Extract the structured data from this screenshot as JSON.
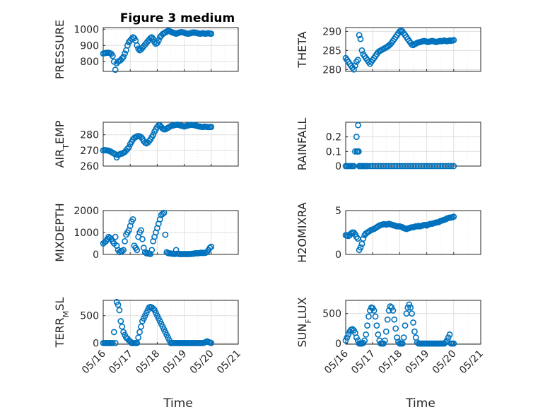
{
  "figure": {
    "title": "Figure 3 medium",
    "xlabel": "Time"
  },
  "colors": {
    "marker": "#0072bd",
    "axes": "#262626",
    "grid": "#dfdfdf"
  },
  "chart_data": [
    {
      "type": "scatter",
      "ylabel": "PRESSURE",
      "ylabel_sub": "",
      "ylabel_tail": "",
      "xlim": [
        "05/16",
        "05/21"
      ],
      "ylim": [
        740,
        1010
      ],
      "yticks": [
        800,
        900,
        1000
      ],
      "x_days": [
        0,
        0.05,
        0.1,
        0.15,
        0.2,
        0.25,
        0.3,
        0.35,
        0.4,
        0.45,
        0.5,
        0.55,
        0.6,
        0.65,
        0.7,
        0.75,
        0.8,
        0.85,
        0.9,
        0.95,
        1.0,
        1.05,
        1.1,
        1.15,
        1.2,
        1.25,
        1.3,
        1.35,
        1.4,
        1.45,
        1.5,
        1.55,
        1.6,
        1.65,
        1.7,
        1.75,
        1.8,
        1.85,
        1.9,
        1.95,
        2.0,
        2.05,
        2.1,
        2.15,
        2.2,
        2.25,
        2.3,
        2.35,
        2.4,
        2.45,
        2.5,
        2.55,
        2.6,
        2.65,
        2.7,
        2.75,
        2.8,
        2.85,
        2.9,
        2.95,
        3.0,
        3.05,
        3.1,
        3.15,
        3.2,
        3.25,
        3.3,
        3.35,
        3.4,
        3.45,
        3.5,
        3.55,
        3.6,
        3.65,
        3.7,
        3.75,
        3.8,
        3.85,
        3.9,
        3.95,
        4.0
      ],
      "y": [
        850,
        852,
        854,
        855,
        855,
        852,
        848,
        835,
        800,
        750,
        790,
        800,
        805,
        810,
        820,
        830,
        850,
        870,
        900,
        920,
        930,
        940,
        950,
        945,
        930,
        900,
        880,
        870,
        875,
        885,
        895,
        905,
        915,
        925,
        935,
        945,
        950,
        940,
        920,
        910,
        915,
        930,
        950,
        960,
        970,
        975,
        980,
        985,
        990,
        988,
        985,
        980,
        978,
        975,
        972,
        975,
        978,
        980,
        982,
        980,
        978,
        975,
        973,
        972,
        974,
        976,
        978,
        980,
        979,
        977,
        975,
        973,
        972,
        974,
        975,
        973,
        972,
        974,
        975,
        973,
        972
      ]
    },
    {
      "type": "scatter",
      "ylabel": "THETA",
      "ylabel_sub": "",
      "ylabel_tail": "",
      "xlim": [
        "05/16",
        "05/21"
      ],
      "ylim": [
        279.5,
        291
      ],
      "yticks": [
        280,
        285,
        290
      ],
      "x_days": [
        0,
        0.05,
        0.1,
        0.15,
        0.2,
        0.25,
        0.3,
        0.35,
        0.4,
        0.45,
        0.5,
        0.55,
        0.6,
        0.65,
        0.7,
        0.75,
        0.8,
        0.85,
        0.9,
        0.95,
        1.0,
        1.05,
        1.1,
        1.15,
        1.2,
        1.25,
        1.3,
        1.35,
        1.4,
        1.45,
        1.5,
        1.55,
        1.6,
        1.65,
        1.7,
        1.75,
        1.8,
        1.85,
        1.9,
        1.95,
        2.0,
        2.05,
        2.1,
        2.15,
        2.2,
        2.25,
        2.3,
        2.35,
        2.4,
        2.45,
        2.5,
        2.55,
        2.6,
        2.65,
        2.7,
        2.75,
        2.8,
        2.85,
        2.9,
        2.95,
        3.0,
        3.05,
        3.1,
        3.15,
        3.2,
        3.25,
        3.3,
        3.35,
        3.4,
        3.45,
        3.5,
        3.55,
        3.6,
        3.65,
        3.7,
        3.75,
        3.8,
        3.85,
        3.9,
        3.95,
        4.0
      ],
      "y": [
        283,
        282.5,
        282,
        281.5,
        281,
        280.5,
        280,
        281,
        282,
        282.5,
        289,
        288,
        285,
        284,
        283.5,
        283,
        282.5,
        282,
        281.5,
        282,
        282.5,
        283,
        283.5,
        284,
        284.5,
        284.8,
        285,
        285.2,
        285.4,
        285.6,
        285.8,
        286,
        286.3,
        286.6,
        287,
        287.5,
        288,
        288.5,
        289,
        289.5,
        290,
        290.2,
        290,
        289.5,
        289,
        288.5,
        288,
        287.5,
        287,
        286.5,
        286.4,
        286.6,
        286.8,
        287,
        287.1,
        287.2,
        287.3,
        287.4,
        287.5,
        287.4,
        287.3,
        287.2,
        287.3,
        287.4,
        287.5,
        287.4,
        287.3,
        287.2,
        287.3,
        287.4,
        287.5,
        287.4,
        287.5,
        287.6,
        287.5,
        287.4,
        287.5,
        287.6,
        287.5,
        287.6,
        287.7
      ]
    },
    {
      "type": "scatter",
      "ylabel": "AIR",
      "ylabel_sub": "T",
      "ylabel_tail": "EMP",
      "xlim": [
        "05/16",
        "05/21"
      ],
      "ylim": [
        260,
        288
      ],
      "yticks": [
        260,
        270,
        280
      ],
      "x_days": [
        0,
        0.05,
        0.1,
        0.15,
        0.2,
        0.25,
        0.3,
        0.35,
        0.4,
        0.45,
        0.5,
        0.55,
        0.6,
        0.65,
        0.7,
        0.75,
        0.8,
        0.85,
        0.9,
        0.95,
        1.0,
        1.05,
        1.1,
        1.15,
        1.2,
        1.25,
        1.3,
        1.35,
        1.4,
        1.45,
        1.5,
        1.55,
        1.6,
        1.65,
        1.7,
        1.75,
        1.8,
        1.85,
        1.9,
        1.95,
        2.0,
        2.05,
        2.1,
        2.15,
        2.2,
        2.25,
        2.3,
        2.35,
        2.4,
        2.45,
        2.5,
        2.55,
        2.6,
        2.65,
        2.7,
        2.75,
        2.8,
        2.85,
        2.9,
        2.95,
        3.0,
        3.05,
        3.1,
        3.15,
        3.2,
        3.25,
        3.3,
        3.35,
        3.4,
        3.45,
        3.5,
        3.55,
        3.6,
        3.65,
        3.7,
        3.75,
        3.8,
        3.85,
        3.9,
        3.95,
        4.0
      ],
      "y": [
        270,
        270.2,
        270.1,
        270,
        269.8,
        269.5,
        269,
        268.5,
        268,
        267.5,
        265.5,
        267,
        267.5,
        267.8,
        268,
        268.5,
        269,
        270,
        271,
        272,
        274,
        275.5,
        277,
        278,
        278.5,
        279,
        279.2,
        279,
        278.5,
        277.5,
        276,
        275,
        274.5,
        275,
        276,
        277,
        278.5,
        280,
        282,
        283.5,
        285,
        286,
        286,
        285,
        284,
        283.5,
        283.5,
        284,
        284.5,
        285,
        285.5,
        285.8,
        286,
        286.2,
        286.4,
        286.5,
        286.3,
        286,
        285.8,
        285.5,
        285.3,
        285.5,
        285.8,
        286,
        286.2,
        286.4,
        286.3,
        286.2,
        286,
        285.8,
        285.5,
        285.3,
        285.2,
        285,
        285,
        285.2,
        285.1,
        285,
        284.9,
        285,
        285
      ]
    },
    {
      "type": "scatter",
      "ylabel": "RAINFALL",
      "ylabel_sub": "",
      "ylabel_tail": "",
      "xlim": [
        "05/16",
        "05/21"
      ],
      "ylim": [
        0,
        0.3
      ],
      "yticks": [
        0,
        0.1,
        0.2
      ],
      "ytick_labels": [
        "0",
        "0.1",
        "0.2"
      ],
      "x_days": [
        0,
        0.05,
        0.1,
        0.15,
        0.2,
        0.25,
        0.3,
        0.35,
        0.4,
        0.42,
        0.44,
        0.46,
        0.48,
        0.5,
        0.52,
        0.55,
        0.6,
        0.65,
        0.7,
        0.75,
        0.8,
        0.9,
        1.0,
        1.1,
        1.2,
        1.3,
        1.4,
        1.5,
        1.6,
        1.7,
        1.8,
        1.9,
        2.0,
        2.1,
        2.2,
        2.3,
        2.4,
        2.5,
        2.6,
        2.7,
        2.8,
        2.9,
        3.0,
        3.1,
        3.2,
        3.3,
        3.4,
        3.5,
        3.6,
        3.7,
        3.8,
        3.9,
        4.0
      ],
      "y": [
        0,
        0,
        0,
        0,
        0,
        0,
        0,
        0.1,
        0.2,
        0.1,
        0.1,
        0.28,
        0.1,
        0,
        0,
        0,
        0,
        0,
        0,
        0,
        0,
        0,
        0,
        0,
        0,
        0,
        0,
        0,
        0,
        0,
        0,
        0,
        0,
        0,
        0,
        0,
        0,
        0,
        0,
        0,
        0,
        0,
        0,
        0,
        0,
        0,
        0,
        0,
        0,
        0,
        0,
        0,
        0
      ]
    },
    {
      "type": "scatter",
      "ylabel": "MIXDEPTH",
      "ylabel_sub": "",
      "ylabel_tail": "",
      "xlim": [
        "05/16",
        "05/21"
      ],
      "ylim": [
        0,
        2000
      ],
      "yticks": [
        0,
        1000,
        2000
      ],
      "x_days": [
        0,
        0.05,
        0.1,
        0.15,
        0.2,
        0.25,
        0.3,
        0.35,
        0.4,
        0.45,
        0.5,
        0.55,
        0.6,
        0.65,
        0.7,
        0.75,
        0.8,
        0.85,
        0.9,
        0.95,
        1.0,
        1.05,
        1.1,
        1.15,
        1.2,
        1.25,
        1.3,
        1.35,
        1.4,
        1.45,
        1.5,
        1.55,
        1.6,
        1.65,
        1.7,
        1.75,
        1.8,
        1.85,
        1.9,
        1.95,
        2.0,
        2.05,
        2.1,
        2.15,
        2.2,
        2.25,
        2.3,
        2.35,
        2.4,
        2.45,
        2.5,
        2.55,
        2.6,
        2.65,
        2.7,
        2.75,
        2.8,
        2.85,
        2.9,
        2.95,
        3.0,
        3.05,
        3.1,
        3.15,
        3.2,
        3.25,
        3.3,
        3.35,
        3.4,
        3.45,
        3.5,
        3.55,
        3.6,
        3.65,
        3.7,
        3.75,
        3.8,
        3.85,
        3.9,
        3.95,
        4.0
      ],
      "y": [
        500,
        550,
        600,
        700,
        800,
        750,
        700,
        600,
        500,
        800,
        400,
        200,
        100,
        150,
        150,
        200,
        600,
        900,
        1000,
        1100,
        1300,
        1500,
        1600,
        400,
        300,
        200,
        800,
        1000,
        1100,
        700,
        300,
        100,
        50,
        50,
        30,
        20,
        200,
        600,
        800,
        1000,
        1200,
        1400,
        1600,
        1800,
        1850,
        1900,
        900,
        100,
        60,
        50,
        40,
        30,
        30,
        20,
        200,
        30,
        20,
        15,
        15,
        15,
        15,
        15,
        15,
        15,
        20,
        20,
        30,
        30,
        50,
        50,
        50,
        60,
        70,
        80,
        60,
        70,
        80,
        120,
        200,
        300,
        350
      ]
    },
    {
      "type": "scatter",
      "ylabel": "H2OMIXRA",
      "ylabel_sub": "",
      "ylabel_tail": "",
      "xlim": [
        "05/16",
        "05/21"
      ],
      "ylim": [
        0,
        5
      ],
      "yticks": [
        0,
        5
      ],
      "x_days": [
        0,
        0.05,
        0.1,
        0.15,
        0.2,
        0.25,
        0.3,
        0.35,
        0.4,
        0.45,
        0.5,
        0.55,
        0.6,
        0.65,
        0.7,
        0.75,
        0.8,
        0.85,
        0.9,
        0.95,
        1.0,
        1.05,
        1.1,
        1.15,
        1.2,
        1.25,
        1.3,
        1.35,
        1.4,
        1.45,
        1.5,
        1.55,
        1.6,
        1.65,
        1.7,
        1.75,
        1.8,
        1.85,
        1.9,
        1.95,
        2.0,
        2.05,
        2.1,
        2.15,
        2.2,
        2.25,
        2.3,
        2.35,
        2.4,
        2.45,
        2.5,
        2.55,
        2.6,
        2.65,
        2.7,
        2.75,
        2.8,
        2.85,
        2.9,
        2.95,
        3.0,
        3.05,
        3.1,
        3.15,
        3.2,
        3.25,
        3.3,
        3.35,
        3.4,
        3.45,
        3.5,
        3.55,
        3.6,
        3.65,
        3.7,
        3.75,
        3.8,
        3.85,
        3.9,
        3.95,
        4.0
      ],
      "y": [
        2.2,
        2.2,
        2.1,
        2.2,
        2.4,
        2.5,
        2.5,
        2.3,
        2,
        1.8,
        0.5,
        0.8,
        1.2,
        1.8,
        2.2,
        2.4,
        2.5,
        2.6,
        2.7,
        2.8,
        2.85,
        2.9,
        3.0,
        3.1,
        3.2,
        3.3,
        3.35,
        3.4,
        3.45,
        3.45,
        3.4,
        3.45,
        3.5,
        3.45,
        3.4,
        3.35,
        3.3,
        3.25,
        3.2,
        3.2,
        3.2,
        3.15,
        3.1,
        3.0,
        2.95,
        2.9,
        2.95,
        3.0,
        3.05,
        3.1,
        3.1,
        3.15,
        3.2,
        3.2,
        3.25,
        3.2,
        3.25,
        3.3,
        3.35,
        3.35,
        3.3,
        3.4,
        3.45,
        3.5,
        3.5,
        3.55,
        3.6,
        3.65,
        3.65,
        3.7,
        3.8,
        3.85,
        3.9,
        3.95,
        4.0,
        4.1,
        4.15,
        4.2,
        4.2,
        4.25,
        4.3
      ]
    },
    {
      "type": "scatter",
      "ylabel": "TERR",
      "ylabel_sub": "M",
      "ylabel_tail": "SL",
      "xlim": [
        "05/16",
        "05/21"
      ],
      "ylim": [
        -20,
        780
      ],
      "yticks": [
        0,
        500
      ],
      "x_days": [
        0,
        0.05,
        0.1,
        0.15,
        0.2,
        0.25,
        0.3,
        0.35,
        0.4,
        0.45,
        0.5,
        0.55,
        0.6,
        0.65,
        0.7,
        0.75,
        0.8,
        0.85,
        0.9,
        0.95,
        1.0,
        1.05,
        1.1,
        1.15,
        1.2,
        1.25,
        1.3,
        1.35,
        1.4,
        1.45,
        1.5,
        1.55,
        1.6,
        1.65,
        1.7,
        1.75,
        1.8,
        1.85,
        1.9,
        1.95,
        2.0,
        2.05,
        2.1,
        2.15,
        2.2,
        2.25,
        2.3,
        2.35,
        2.4,
        2.45,
        2.5,
        2.55,
        2.6,
        2.65,
        2.7,
        2.75,
        2.8,
        2.85,
        2.9,
        2.95,
        3.0,
        3.05,
        3.1,
        3.15,
        3.2,
        3.25,
        3.3,
        3.35,
        3.4,
        3.45,
        3.5,
        3.55,
        3.6,
        3.65,
        3.7,
        3.75,
        3.8,
        3.85,
        3.9,
        3.95,
        4.0
      ],
      "y": [
        0,
        0,
        0,
        0,
        0,
        0,
        0,
        0,
        200,
        0,
        750,
        700,
        600,
        400,
        300,
        200,
        150,
        100,
        80,
        50,
        30,
        0,
        0,
        0,
        0,
        0,
        100,
        200,
        300,
        400,
        450,
        500,
        550,
        600,
        650,
        660,
        650,
        630,
        600,
        550,
        500,
        450,
        400,
        350,
        300,
        250,
        200,
        150,
        100,
        50,
        0,
        0,
        0,
        0,
        0,
        0,
        0,
        0,
        0,
        0,
        0,
        0,
        0,
        0,
        0,
        0,
        0,
        0,
        0,
        0,
        0,
        0,
        0,
        0,
        0,
        10,
        20,
        30,
        20,
        10,
        0
      ]
    },
    {
      "type": "scatter",
      "ylabel": "SUN",
      "ylabel_sub": "F",
      "ylabel_tail": "LUX",
      "xlim": [
        "05/16",
        "05/21"
      ],
      "ylim": [
        -10,
        720
      ],
      "yticks": [
        0,
        500
      ],
      "x_days": [
        0,
        0.05,
        0.1,
        0.15,
        0.2,
        0.25,
        0.3,
        0.35,
        0.4,
        0.45,
        0.5,
        0.55,
        0.6,
        0.65,
        0.7,
        0.75,
        0.8,
        0.85,
        0.9,
        0.95,
        1.0,
        1.05,
        1.1,
        1.15,
        1.2,
        1.25,
        1.3,
        1.35,
        1.4,
        1.45,
        1.5,
        1.55,
        1.6,
        1.65,
        1.7,
        1.75,
        1.8,
        1.85,
        1.9,
        1.95,
        2.0,
        2.05,
        2.1,
        2.15,
        2.2,
        2.25,
        2.3,
        2.35,
        2.4,
        2.45,
        2.5,
        2.55,
        2.6,
        2.65,
        2.7,
        2.75,
        2.8,
        2.85,
        2.9,
        2.95,
        3.0,
        3.05,
        3.1,
        3.15,
        3.2,
        3.25,
        3.3,
        3.35,
        3.4,
        3.45,
        3.5,
        3.55,
        3.6,
        3.65,
        3.7,
        3.75,
        3.8,
        3.85,
        3.9,
        3.95,
        4.0
      ],
      "y": [
        50,
        100,
        150,
        200,
        230,
        240,
        220,
        180,
        100,
        50,
        0,
        0,
        0,
        10,
        50,
        150,
        300,
        450,
        550,
        600,
        590,
        550,
        450,
        300,
        150,
        50,
        0,
        0,
        0,
        50,
        200,
        400,
        550,
        620,
        600,
        550,
        400,
        250,
        100,
        30,
        0,
        0,
        0,
        100,
        300,
        500,
        600,
        650,
        600,
        500,
        350,
        200,
        100,
        20,
        0,
        0,
        0,
        0,
        0,
        0,
        0,
        0,
        0,
        0,
        0,
        0,
        0,
        0,
        0,
        0,
        0,
        0,
        0,
        0,
        20,
        50,
        100,
        150,
        0,
        0,
        0
      ]
    }
  ],
  "x_ticks": [
    "05/16",
    "05/17",
    "05/18",
    "05/19",
    "05/20",
    "05/21"
  ]
}
